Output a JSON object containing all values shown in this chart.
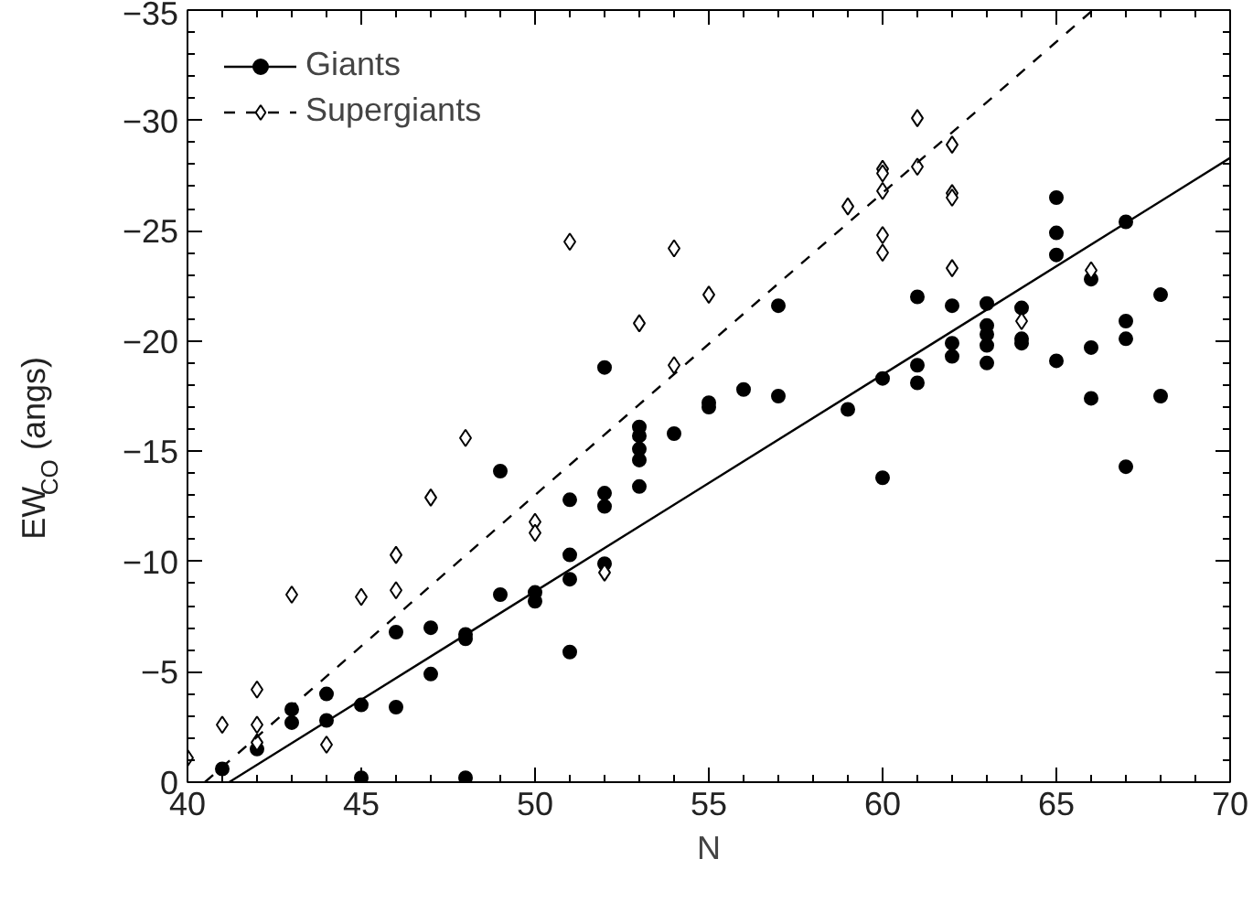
{
  "chart_data": {
    "type": "scatter",
    "xlabel": "N",
    "ylabel": "EW$_{CO}$ (angs)",
    "xlim": [
      40,
      70
    ],
    "ylim": [
      0,
      -35
    ],
    "xticks": [
      40,
      45,
      50,
      55,
      60,
      65,
      70
    ],
    "yticks": [
      0,
      -5,
      -10,
      -15,
      -20,
      -25,
      -30,
      -35
    ],
    "grid": false,
    "legend": "top left",
    "series": [
      {
        "name": "Giants",
        "marker": "circle",
        "color": "#000000",
        "x": [
          41,
          42,
          43,
          43,
          44,
          44,
          45,
          45,
          46,
          46,
          47,
          47,
          48,
          48,
          48,
          49,
          49,
          50,
          50,
          51,
          51,
          51,
          51,
          52,
          52,
          52,
          52,
          53,
          53,
          53,
          53,
          53,
          54,
          55,
          55,
          56,
          57,
          57,
          59,
          60,
          60,
          61,
          61,
          61,
          62,
          62,
          62,
          63,
          63,
          63,
          63,
          63,
          64,
          64,
          64,
          65,
          65,
          65,
          65,
          66,
          66,
          66,
          67,
          67,
          67,
          67,
          68,
          68
        ],
        "values": [
          -0.6,
          -1.5,
          -3.3,
          -2.7,
          -4.0,
          -2.8,
          -3.5,
          -0.2,
          -6.8,
          -3.4,
          -7.0,
          -4.9,
          -6.7,
          -6.5,
          -0.2,
          -8.5,
          -14.1,
          -8.6,
          -8.2,
          -12.8,
          -10.3,
          -9.2,
          -5.9,
          -13.1,
          -12.5,
          -9.9,
          -18.8,
          -16.1,
          -15.7,
          -15.1,
          -14.6,
          -13.4,
          -15.8,
          -17.2,
          -17.0,
          -17.8,
          -21.6,
          -17.5,
          -16.9,
          -18.3,
          -13.8,
          -22.0,
          -18.9,
          -18.1,
          -21.6,
          -19.9,
          -19.3,
          -21.7,
          -20.7,
          -20.3,
          -19.8,
          -19.0,
          -21.5,
          -20.1,
          -19.9,
          -26.5,
          -24.9,
          -23.9,
          -19.1,
          -22.8,
          -19.7,
          -17.4,
          -25.4,
          -20.9,
          -20.1,
          -14.3,
          -22.1,
          -17.5
        ]
      },
      {
        "name": "Supergiants",
        "marker": "diamond",
        "color": "#000000",
        "x": [
          40,
          41,
          42,
          42,
          42,
          43,
          44,
          45,
          46,
          46,
          47,
          48,
          50,
          50,
          51,
          52,
          53,
          54,
          54,
          55,
          59,
          60,
          60,
          60,
          60,
          60,
          61,
          61,
          62,
          62,
          62,
          62,
          64,
          66
        ],
        "values": [
          -1.1,
          -2.6,
          -4.2,
          -2.6,
          -1.8,
          -8.5,
          -1.7,
          -8.4,
          -10.3,
          -8.7,
          -12.9,
          -15.6,
          -11.8,
          -11.3,
          -24.5,
          -9.5,
          -20.8,
          -24.2,
          -18.9,
          -22.1,
          -26.1,
          -27.8,
          -27.6,
          -26.8,
          -24.8,
          -24.0,
          -30.1,
          -27.9,
          -28.9,
          -26.7,
          -26.5,
          -23.3,
          -20.9,
          -23.2
        ]
      },
      {
        "type": "line",
        "line_style": "solid",
        "color": "#000000",
        "x": [
          41.2,
          70
        ],
        "values": [
          0,
          -28.3
        ]
      },
      {
        "type": "line",
        "line_style": "dashed",
        "color": "#000000",
        "x": [
          40.5,
          66.05
        ],
        "values": [
          0,
          -35
        ]
      }
    ]
  }
}
